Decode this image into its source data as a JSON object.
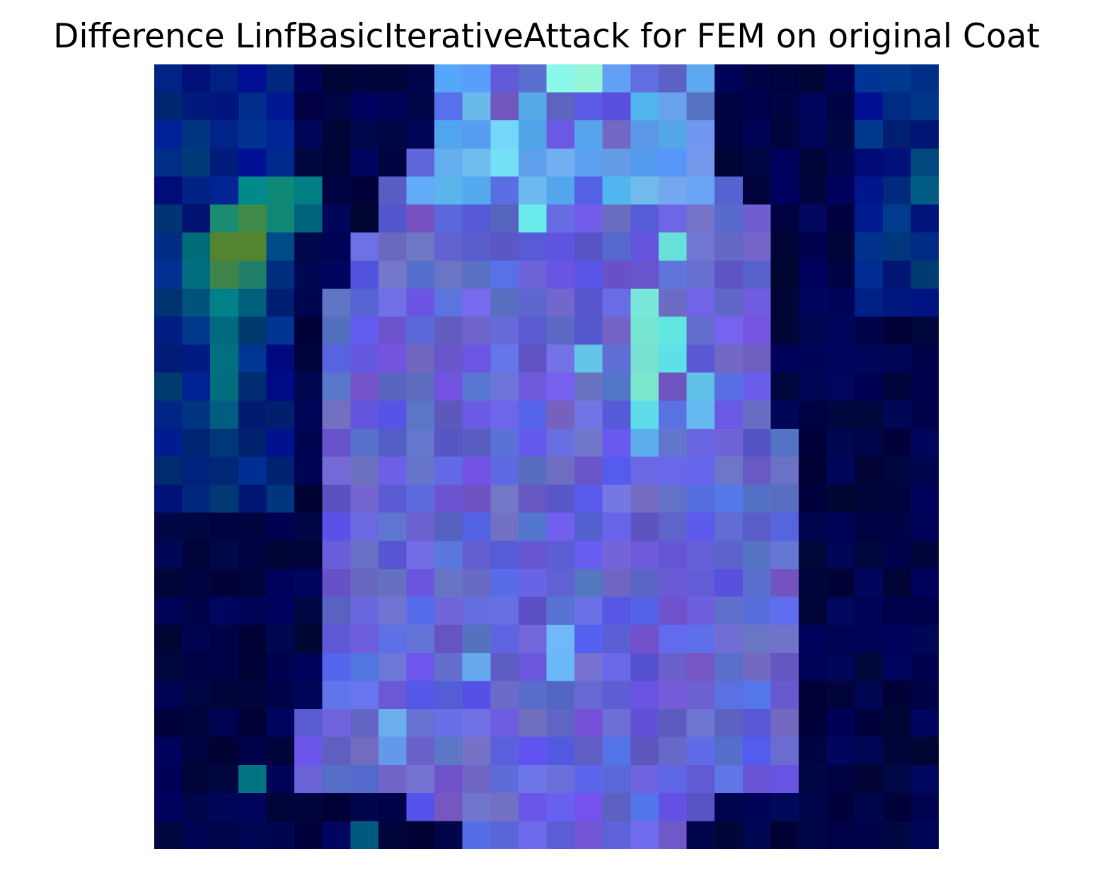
{
  "figure": {
    "title": "Difference LinfBasicIterativeAttack for FEM on original Coat"
  }
}
